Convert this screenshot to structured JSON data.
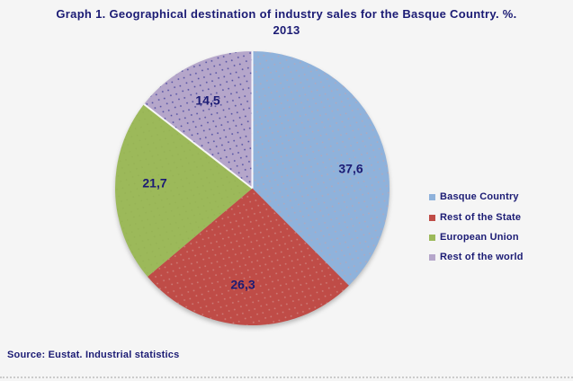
{
  "page": {
    "background": "#f5f5f5",
    "text_color": "#1b1b74"
  },
  "header": {
    "title_line1": "Graph 1. Geographical destination of industry sales for the Basque Country. %.",
    "title_line2": "2013"
  },
  "source": {
    "text": "Source: Eustat. Industrial statistics"
  },
  "chart_data": {
    "type": "pie",
    "title": "Graph 1. Geographical destination of industry sales for the Basque Country. %. 2013",
    "unit": "%",
    "year": "2013",
    "start_angle_deg": 0,
    "direction": "clockwise",
    "legend_position": "right",
    "value_labels_inside": true,
    "decimal_separator": ",",
    "segments": [
      {
        "label": "Basque Country",
        "value": 37.6,
        "display_value": "37,6",
        "color": "#8fb2db",
        "texture_dot_color": "#cf9f9f"
      },
      {
        "label": "Rest of the State",
        "value": 26.3,
        "display_value": "26,3",
        "color": "#bf4c47",
        "texture_dot_color": "#d9a8a3"
      },
      {
        "label": "European Union",
        "value": 21.7,
        "display_value": "21,7",
        "color": "#9cb95a",
        "texture_dot_color": "#91ad50"
      },
      {
        "label": "Rest of the world",
        "value": 14.5,
        "display_value": "14,5",
        "color": "#b5a6ca",
        "texture_dot_color": "#3c3c99"
      }
    ]
  }
}
